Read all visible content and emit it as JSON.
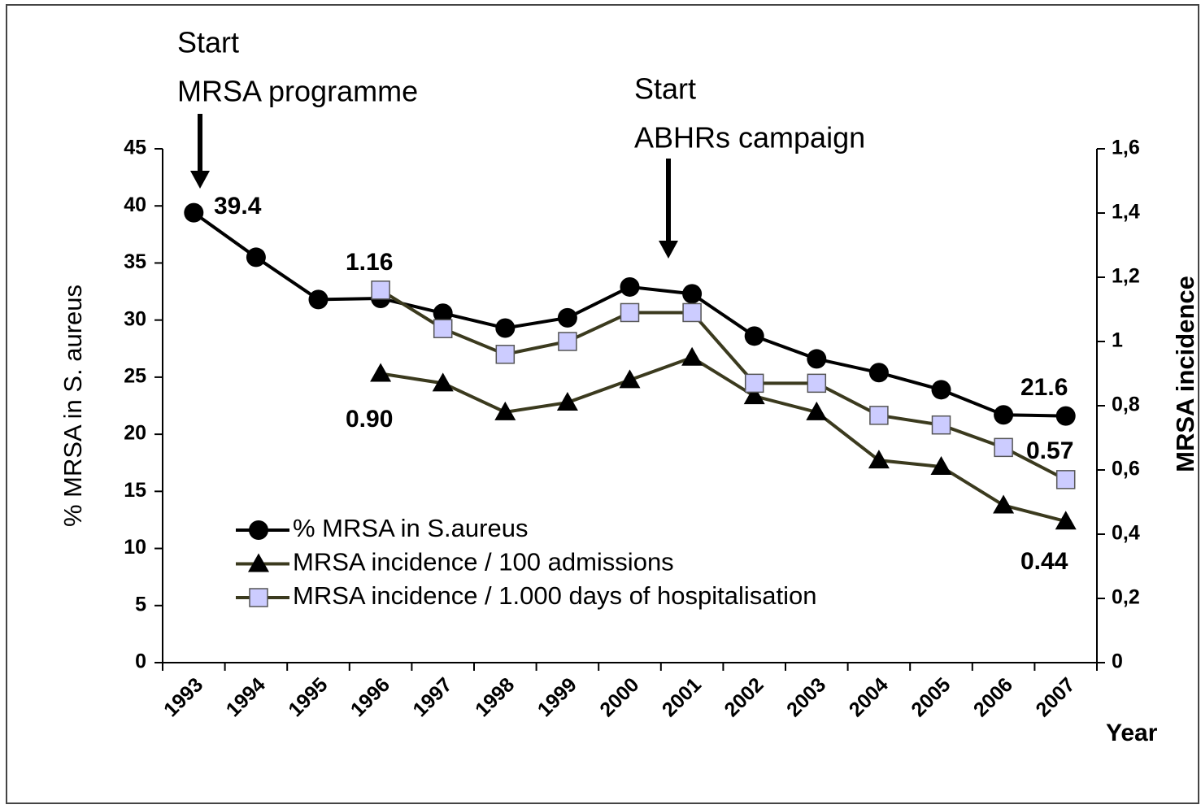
{
  "chart_data": {
    "type": "line",
    "y_label": "% MRSA in S. aureus",
    "y2_label": "MRSA incidence",
    "x_label": "Year",
    "annotations": [
      [
        "Start",
        "MRSA programme"
      ],
      [
        "Start",
        "ABHRs campaign"
      ]
    ],
    "categories": [
      "1993",
      "1994",
      "1995",
      "1996",
      "1997",
      "1998",
      "1999",
      "2000",
      "2001",
      "2002",
      "2003",
      "2004",
      "2005",
      "2006",
      "2007"
    ],
    "series": [
      {
        "name": "% MRSA in S.aureus",
        "color": "#000000",
        "marker": "circle",
        "marker_color": "#000000",
        "values": [
          39.4,
          35.5,
          31.8,
          31.9,
          30.6,
          29.3,
          30.2,
          32.9,
          32.3,
          28.6,
          26.6,
          25.4,
          23.9,
          21.7,
          21.6
        ],
        "value_labels": [
          "39.4",
          null,
          null,
          null,
          null,
          null,
          null,
          null,
          null,
          null,
          null,
          null,
          null,
          null,
          "21.6"
        ]
      },
      {
        "name": "MRSA incidence / 100 admissions",
        "color": "#3b3a1e",
        "marker": "triangle",
        "marker_color": "#000000",
        "axis": "y2",
        "values": [
          null,
          null,
          null,
          0.9,
          0.87,
          0.78,
          0.81,
          0.88,
          0.95,
          0.83,
          0.78,
          0.63,
          0.61,
          0.49,
          0.44
        ],
        "value_labels": [
          null,
          null,
          null,
          "0.90",
          null,
          null,
          null,
          null,
          null,
          null,
          null,
          null,
          null,
          null,
          "0.44"
        ]
      },
      {
        "name": "MRSA incidence / 1.000 days of hospitalisation",
        "color": "#3b3a1e",
        "marker": "square",
        "marker_color": "#ccccff",
        "axis": "y2",
        "values": [
          null,
          null,
          null,
          1.16,
          1.04,
          0.96,
          1.0,
          1.09,
          1.09,
          0.87,
          0.87,
          0.77,
          0.74,
          0.67,
          0.57
        ],
        "value_labels": [
          null,
          null,
          null,
          "1.16",
          null,
          null,
          null,
          null,
          null,
          null,
          null,
          null,
          null,
          null,
          "0.57"
        ]
      }
    ],
    "ylim": [
      0,
      45
    ],
    "yticks": [
      0,
      5,
      10,
      15,
      20,
      25,
      30,
      35,
      40,
      45
    ],
    "y2lim": [
      0,
      1.6
    ],
    "y2ticks": [
      0,
      {
        "value": 0.2,
        "label": "0,2"
      },
      {
        "value": 0.4,
        "label": "0,4"
      },
      {
        "value": 0.6,
        "label": "0,6"
      },
      {
        "value": 0.8,
        "label": "0,8"
      },
      1,
      {
        "value": 1.2,
        "label": "1,2"
      },
      {
        "value": 1.4,
        "label": "1,4"
      },
      {
        "value": 1.6,
        "label": "1,6"
      }
    ],
    "grid": false
  }
}
